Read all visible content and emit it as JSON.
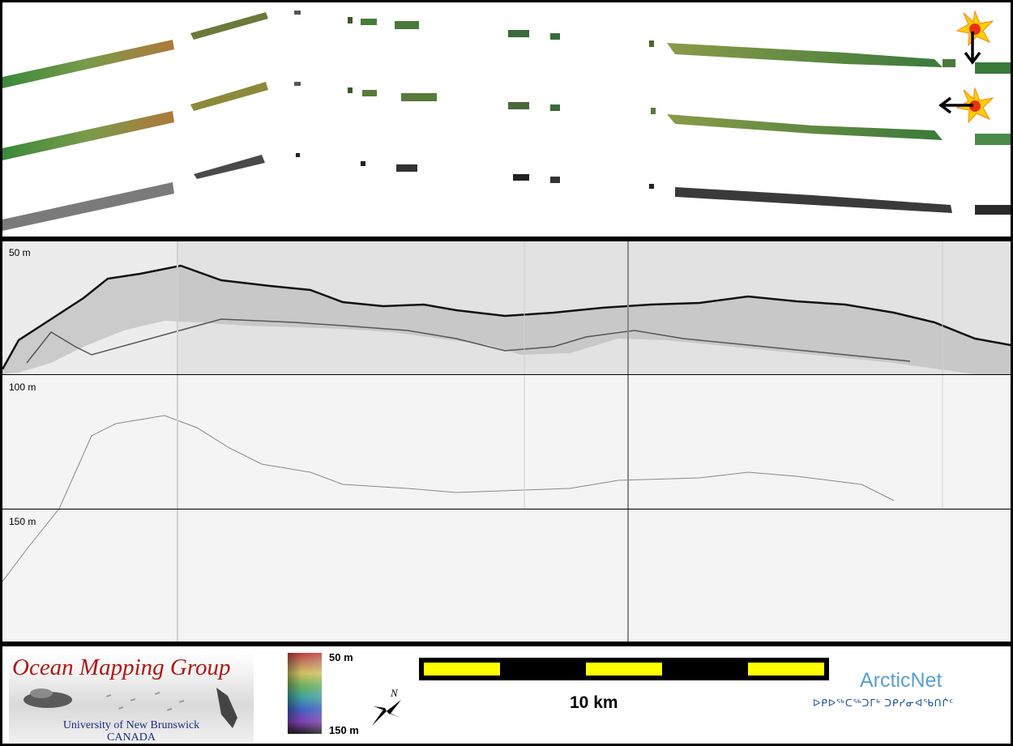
{
  "profile": {
    "depth_labels": [
      "50 m",
      "100 m",
      "150 m"
    ]
  },
  "legend": {
    "org_title": "Ocean Mapping Group",
    "org_university": "University of New Brunswick",
    "org_country": "CANADA",
    "colorbar_top": "50 m",
    "colorbar_bottom": "150 m",
    "north_label": "N",
    "scale_label": "10 km",
    "partner_name": "ArcticNet",
    "partner_syllabics": "ᐅᑭᐅᖅᑕᖅᑐᒥᒃ ᑐᑭᓯᓂᐊᖃᑎᒌᑦ"
  },
  "icons": {
    "sun_icon": "sun-icon",
    "arrow_down": "arrow-down-icon",
    "arrow_left": "arrow-left-icon",
    "compass": "north-arrow-icon"
  },
  "colors": {
    "frame": "#000000",
    "org_red": "#b01818",
    "org_blue": "#1a2a8a",
    "arcticnet_blue": "#5a9fd4",
    "scale_yellow": "#ffff00"
  }
}
